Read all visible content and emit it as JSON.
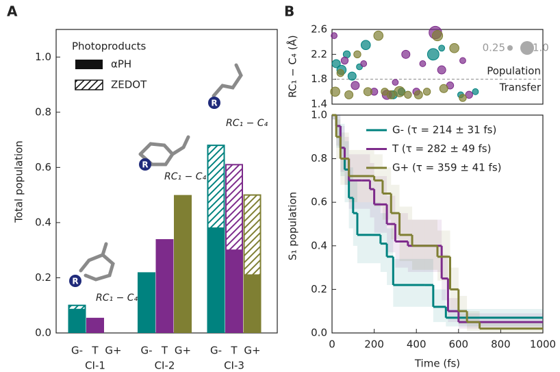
{
  "chart_data": [
    {
      "type": "grouped_stacked_bar",
      "panel": "A",
      "ylabel": "Total population",
      "groups": [
        "CI-1",
        "CI-2",
        "CI-3"
      ],
      "ylim": [
        0,
        1.1
      ],
      "yticks": [
        {
          "value": 0,
          "label": "0.0"
        },
        0.2,
        0.4,
        0.6,
        0.8,
        {
          "value": 1,
          "label": "1.0"
        }
      ],
      "legend_title": "Photoproducts",
      "stack_labels": [
        "αPH",
        "ZEDOT"
      ],
      "series": [
        {
          "name": "G-",
          "color": "#00827f",
          "values": [
            0.085,
            0.22,
            0.38
          ],
          "hatched_values": [
            0.015,
            0,
            0.3
          ]
        },
        {
          "name": "T",
          "color": "#7d2b8b",
          "values": [
            0.055,
            0.34,
            0.3
          ],
          "hatched_values": [
            0,
            0,
            0.31
          ]
        },
        {
          "name": "G+",
          "color": "#7f7f33",
          "values": [
            0,
            0.5,
            0.21
          ],
          "hatched_values": [
            0,
            0,
            0.29
          ]
        }
      ],
      "annotations": [
        {
          "marker": "R",
          "text": "RC₁ − C₄"
        },
        {
          "marker": "R",
          "text": "RC₁ − C₄"
        },
        {
          "marker": "R",
          "text": "RC₁ − C₄"
        }
      ]
    },
    {
      "type": "bubble",
      "panel": "B",
      "ylabel": "RC₁ − C₄ (Å)",
      "xlim": [
        0,
        1000
      ],
      "ylim": [
        1.4,
        2.6
      ],
      "yticks": [
        1.4,
        1.8,
        2.2,
        2.6
      ],
      "threshold": 1.8,
      "threshold_label": [
        "Population",
        "Transfer"
      ],
      "size_legend": [
        0.25,
        {
          "value": 1,
          "label": "1.0"
        }
      ],
      "series": [
        {
          "color": "#00827f",
          "x": [
            20,
            45,
            70,
            95,
            130,
            160,
            290,
            330,
            480,
            520,
            610,
            680
          ],
          "values": [
            2.05,
            1.95,
            2.2,
            1.85,
            2.0,
            2.35,
            1.55,
            1.6,
            2.2,
            2.3,
            1.55,
            1.6
          ],
          "sizes": [
            0.5,
            0.6,
            0.4,
            0.5,
            0.3,
            0.6,
            0.5,
            0.4,
            0.8,
            0.3,
            0.3,
            0.3
          ]
        },
        {
          "color": "#7d2b8b",
          "x": [
            10,
            60,
            110,
            150,
            200,
            260,
            300,
            350,
            400,
            430,
            490,
            520,
            560,
            620,
            650
          ],
          "values": [
            2.5,
            2.1,
            1.7,
            2.05,
            1.6,
            1.55,
            1.75,
            2.2,
            1.6,
            2.05,
            2.55,
            1.95,
            1.7,
            2.1,
            1.55
          ],
          "sizes": [
            0.3,
            0.4,
            0.5,
            0.3,
            0.4,
            0.6,
            0.3,
            0.5,
            0.4,
            0.3,
            0.9,
            0.5,
            0.4,
            0.3,
            0.4
          ]
        },
        {
          "color": "#7f7f33",
          "x": [
            15,
            40,
            80,
            120,
            170,
            220,
            250,
            280,
            320,
            360,
            410,
            450,
            500,
            530,
            580,
            620
          ],
          "values": [
            1.6,
            1.9,
            1.55,
            2.2,
            1.6,
            2.5,
            1.6,
            1.55,
            1.6,
            1.55,
            1.55,
            1.6,
            2.5,
            1.65,
            2.3,
            1.5
          ],
          "sizes": [
            0.6,
            0.4,
            0.5,
            0.4,
            0.5,
            0.6,
            0.4,
            0.5,
            0.7,
            0.4,
            0.5,
            0.4,
            0.7,
            0.5,
            0.6,
            0.4
          ]
        }
      ]
    },
    {
      "type": "step",
      "xlabel": "Time (fs)",
      "ylabel": "S₁ population",
      "xlim": [
        0,
        1000
      ],
      "ylim": [
        0,
        1
      ],
      "xticks": [
        0,
        200,
        400,
        600,
        800,
        1000
      ],
      "yticks": [
        {
          "value": 0,
          "label": "0.0"
        },
        0.2,
        0.4,
        0.6,
        0.8,
        {
          "value": 1,
          "label": "1.0"
        }
      ],
      "series": [
        {
          "name": "G- (τ = 214 ± 31 fs)",
          "color": "#00827f",
          "x": [
            0,
            20,
            40,
            60,
            80,
            100,
            120,
            190,
            230,
            260,
            290,
            440,
            480,
            540
          ],
          "values": [
            1.0,
            0.95,
            0.85,
            0.75,
            0.62,
            0.55,
            0.45,
            0.45,
            0.41,
            0.35,
            0.22,
            0.22,
            0.12,
            0.07
          ],
          "lower": [
            0.98,
            0.85,
            0.72,
            0.6,
            0.48,
            0.4,
            0.32,
            0.32,
            0.28,
            0.22,
            0.12,
            0.12,
            0.05,
            0.03
          ],
          "upper": [
            1.0,
            1.0,
            0.96,
            0.88,
            0.76,
            0.7,
            0.6,
            0.6,
            0.55,
            0.48,
            0.34,
            0.34,
            0.2,
            0.11
          ]
        },
        {
          "name": "T (τ = 282 ± 49 fs)",
          "color": "#7d2b8b",
          "x": [
            0,
            20,
            40,
            60,
            80,
            140,
            180,
            200,
            260,
            300,
            360,
            490,
            520,
            550,
            600
          ],
          "values": [
            1.0,
            0.95,
            0.85,
            0.8,
            0.7,
            0.7,
            0.66,
            0.59,
            0.5,
            0.42,
            0.4,
            0.4,
            0.25,
            0.1,
            0.05
          ],
          "lower": [
            0.98,
            0.86,
            0.74,
            0.68,
            0.57,
            0.57,
            0.53,
            0.46,
            0.37,
            0.3,
            0.28,
            0.28,
            0.15,
            0.05,
            0.02
          ],
          "upper": [
            1.0,
            1.0,
            0.95,
            0.9,
            0.82,
            0.82,
            0.78,
            0.72,
            0.63,
            0.55,
            0.52,
            0.52,
            0.36,
            0.16,
            0.09
          ]
        },
        {
          "name": "G+ (τ = 359 ± 41 fs)",
          "color": "#7f7f33",
          "x": [
            0,
            20,
            40,
            80,
            180,
            200,
            240,
            280,
            320,
            380,
            440,
            500,
            560,
            600,
            640,
            700
          ],
          "values": [
            1.0,
            0.9,
            0.8,
            0.72,
            0.72,
            0.7,
            0.64,
            0.55,
            0.45,
            0.4,
            0.4,
            0.35,
            0.2,
            0.1,
            0.05,
            0.02
          ],
          "lower": [
            0.98,
            0.8,
            0.68,
            0.6,
            0.6,
            0.58,
            0.52,
            0.43,
            0.33,
            0.29,
            0.29,
            0.24,
            0.11,
            0.04,
            0.01,
            0.0
          ],
          "upper": [
            1.0,
            0.98,
            0.92,
            0.84,
            0.84,
            0.82,
            0.76,
            0.68,
            0.58,
            0.52,
            0.52,
            0.47,
            0.3,
            0.17,
            0.1,
            0.05
          ]
        }
      ]
    }
  ]
}
